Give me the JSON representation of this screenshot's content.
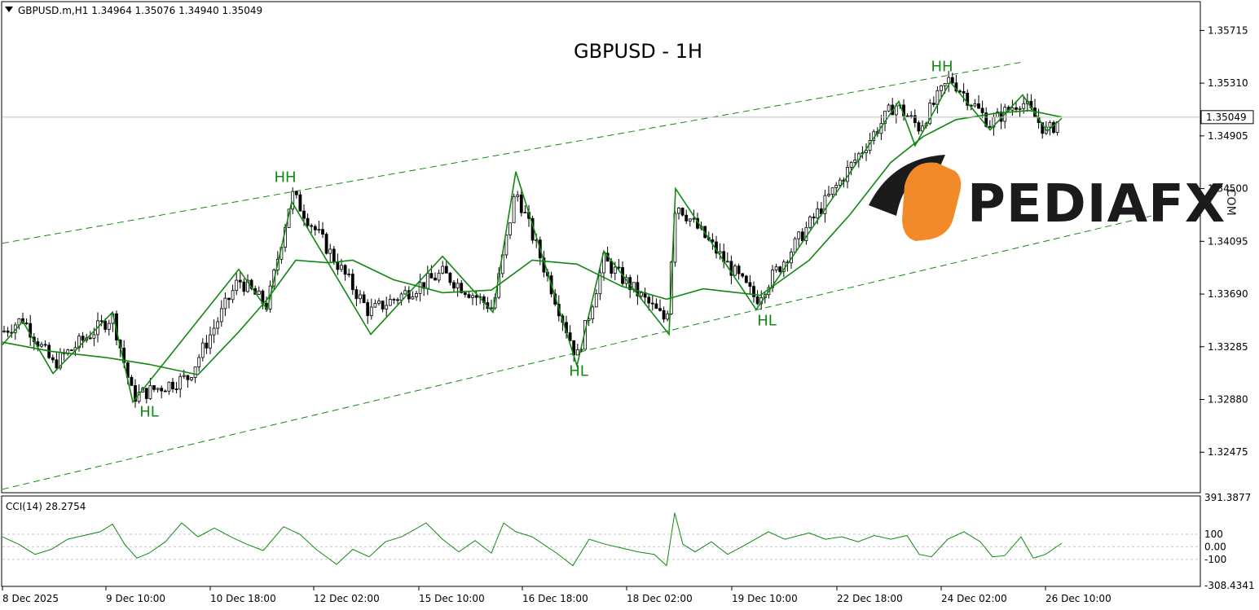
{
  "header": {
    "collapse_icon": "triangle-down-icon",
    "symbol_label": "GBPUSD.m,H1  1.34964 1.35076 1.34940 1.35049"
  },
  "title": "GBPUSD - 1H",
  "logo": {
    "brand": "PEDIAFX",
    "suffix": ".COM"
  },
  "colors": {
    "trend": "#118811",
    "candles": "#000000",
    "grid": "#c8c8c8",
    "price_line": "#c0c0c0"
  },
  "chart_data": [
    {
      "type": "line",
      "name": "price",
      "symbol": "GBPUSD.m",
      "timeframe": "H1",
      "ohlc_last": {
        "open": 1.34964,
        "high": 1.35076,
        "low": 1.3494,
        "close": 1.35049
      },
      "current_price_label": "1.35049",
      "ylim": [
        1.3217,
        1.3593
      ],
      "yticks": [
        "1.35715",
        "1.35310",
        "1.34905",
        "1.34500",
        "1.34095",
        "1.33690",
        "1.33285",
        "1.32880",
        "1.32475"
      ],
      "xticks": [
        "8 Dec 2025",
        "9 Dec 10:00",
        "10 Dec 18:00",
        "12 Dec 02:00",
        "15 Dec 10:00",
        "16 Dec 18:00",
        "18 Dec 02:00",
        "19 Dec 10:00",
        "22 Dec 18:00",
        "24 Dec 02:00",
        "26 Dec 10:00"
      ],
      "x_range": [
        0,
        1300
      ],
      "x": [
        0,
        25,
        62,
        135,
        160,
        228,
        290,
        325,
        355,
        450,
        540,
        602,
        630,
        705,
        738,
        815,
        826,
        925,
        1095,
        1125,
        1163,
        1212,
        1250,
        1282,
        1300
      ],
      "close": [
        1.334,
        1.335,
        1.3315,
        1.3352,
        1.329,
        1.3305,
        1.338,
        1.336,
        1.3446,
        1.3355,
        1.3385,
        1.3358,
        1.3449,
        1.332,
        1.3395,
        1.3348,
        1.344,
        1.3365,
        1.3515,
        1.3497,
        1.3535,
        1.35,
        1.3518,
        1.3493,
        1.35049
      ],
      "zigzag": [
        {
          "x": 0,
          "y": 1.333
        },
        {
          "x": 25,
          "y": 1.3348
        },
        {
          "x": 62,
          "y": 1.3308
        },
        {
          "x": 135,
          "y": 1.3355
        },
        {
          "x": 160,
          "y": 1.3286
        },
        {
          "x": 290,
          "y": 1.3388
        },
        {
          "x": 325,
          "y": 1.3357
        },
        {
          "x": 355,
          "y": 1.344
        },
        {
          "x": 452,
          "y": 1.3338
        },
        {
          "x": 540,
          "y": 1.3398
        },
        {
          "x": 602,
          "y": 1.3355
        },
        {
          "x": 630,
          "y": 1.3463
        },
        {
          "x": 705,
          "y": 1.3314
        },
        {
          "x": 738,
          "y": 1.3402
        },
        {
          "x": 818,
          "y": 1.3338
        },
        {
          "x": 826,
          "y": 1.345
        },
        {
          "x": 925,
          "y": 1.3357
        },
        {
          "x": 1100,
          "y": 1.3517
        },
        {
          "x": 1120,
          "y": 1.3483
        },
        {
          "x": 1163,
          "y": 1.3532
        },
        {
          "x": 1212,
          "y": 1.3495
        },
        {
          "x": 1252,
          "y": 1.3522
        },
        {
          "x": 1282,
          "y": 1.3494
        },
        {
          "x": 1300,
          "y": 1.3504
        }
      ],
      "moving_average": [
        {
          "x": 0,
          "y": 1.3332
        },
        {
          "x": 60,
          "y": 1.3325
        },
        {
          "x": 130,
          "y": 1.332
        },
        {
          "x": 180,
          "y": 1.3315
        },
        {
          "x": 240,
          "y": 1.3307
        },
        {
          "x": 290,
          "y": 1.334
        },
        {
          "x": 325,
          "y": 1.3365
        },
        {
          "x": 360,
          "y": 1.3395
        },
        {
          "x": 400,
          "y": 1.3393
        },
        {
          "x": 430,
          "y": 1.3395
        },
        {
          "x": 480,
          "y": 1.338
        },
        {
          "x": 540,
          "y": 1.337
        },
        {
          "x": 600,
          "y": 1.3372
        },
        {
          "x": 650,
          "y": 1.3395
        },
        {
          "x": 705,
          "y": 1.3392
        },
        {
          "x": 760,
          "y": 1.3375
        },
        {
          "x": 815,
          "y": 1.3365
        },
        {
          "x": 860,
          "y": 1.3373
        },
        {
          "x": 930,
          "y": 1.3368
        },
        {
          "x": 990,
          "y": 1.3395
        },
        {
          "x": 1040,
          "y": 1.343
        },
        {
          "x": 1090,
          "y": 1.347
        },
        {
          "x": 1130,
          "y": 1.349
        },
        {
          "x": 1170,
          "y": 1.3503
        },
        {
          "x": 1220,
          "y": 1.3508
        },
        {
          "x": 1260,
          "y": 1.351
        },
        {
          "x": 1300,
          "y": 1.3505
        }
      ],
      "channel": {
        "upper": [
          {
            "x": 0,
            "y": 1.3408
          },
          {
            "x": 1250,
            "y": 1.3547
          }
        ],
        "lower": [
          {
            "x": 0,
            "y": 1.3219
          },
          {
            "x": 1410,
            "y": 1.3429
          }
        ]
      },
      "annotations": [
        {
          "text": "HH",
          "x": 347,
          "y": 1.3455
        },
        {
          "text": "HL",
          "x": 180,
          "y": 1.3275
        },
        {
          "text": "HL",
          "x": 707,
          "y": 1.3306
        },
        {
          "text": "HL",
          "x": 938,
          "y": 1.3345
        },
        {
          "text": "HH",
          "x": 1153,
          "y": 1.354
        }
      ]
    },
    {
      "type": "line",
      "name": "CCI(14)",
      "label": "CCI(14) 28.2754",
      "last_value": 28.2754,
      "ylim": [
        -308.4341,
        391.3877
      ],
      "yticks": [
        "391.3877",
        "100",
        "0.00",
        "-100",
        "-308.4341"
      ],
      "levels": [
        100,
        0,
        -100
      ],
      "x": [
        0,
        20,
        40,
        60,
        80,
        100,
        120,
        135,
        150,
        165,
        180,
        200,
        220,
        240,
        260,
        280,
        300,
        320,
        345,
        365,
        385,
        410,
        430,
        450,
        470,
        490,
        520,
        540,
        560,
        580,
        600,
        615,
        630,
        650,
        680,
        700,
        720,
        740,
        760,
        780,
        800,
        815,
        825,
        835,
        850,
        870,
        890,
        910,
        940,
        960,
        990,
        1010,
        1030,
        1050,
        1070,
        1090,
        1110,
        1125,
        1140,
        1160,
        1180,
        1200,
        1215,
        1230,
        1250,
        1265,
        1280,
        1300
      ],
      "values": [
        80,
        20,
        -60,
        -20,
        60,
        90,
        120,
        180,
        20,
        -90,
        -50,
        40,
        190,
        80,
        150,
        80,
        20,
        -30,
        160,
        100,
        -20,
        -140,
        -20,
        -80,
        40,
        80,
        190,
        60,
        -40,
        50,
        -50,
        190,
        120,
        80,
        -50,
        -150,
        60,
        20,
        -10,
        -40,
        -60,
        -150,
        270,
        20,
        -40,
        40,
        -60,
        10,
        120,
        60,
        110,
        60,
        80,
        40,
        90,
        60,
        90,
        -60,
        -80,
        60,
        120,
        40,
        -80,
        -70,
        80,
        -90,
        -60,
        28.2754
      ]
    }
  ]
}
